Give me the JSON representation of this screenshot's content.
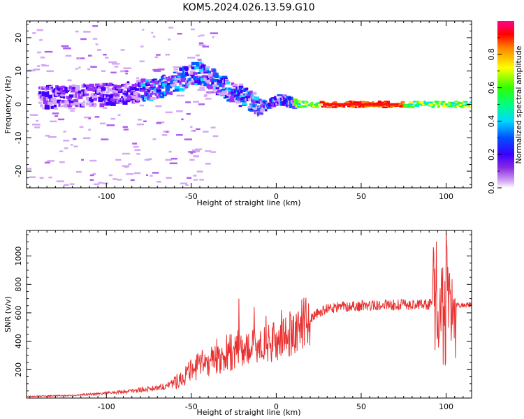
{
  "figure_title": "KOM5.2024.026.13.59.G10",
  "chart_data": [
    {
      "type": "heatmap",
      "xlabel": "Height of straight line (km)",
      "ylabel": "Frequency (Hz)",
      "xlim": [
        -147,
        115
      ],
      "ylim": [
        -25,
        25
      ],
      "xticks": [
        -100,
        -50,
        0,
        50,
        100
      ],
      "yticks": [
        -20,
        -10,
        0,
        10,
        20
      ],
      "colorbar": {
        "label": "Normalized spectral amplitude",
        "range": [
          0,
          1
        ],
        "ticks": [
          0.0,
          0.2,
          0.4,
          0.6,
          0.8
        ],
        "tick_labels": [
          "0.0",
          "0.2",
          "0.4",
          "0.6",
          "0.8"
        ]
      },
      "signal_trace": [
        [
          -140,
          2
        ],
        [
          -120,
          2.5
        ],
        [
          -100,
          3
        ],
        [
          -90,
          3.5
        ],
        [
          -80,
          4
        ],
        [
          -70,
          5
        ],
        [
          -60,
          6.5
        ],
        [
          -55,
          8
        ],
        [
          -50,
          9
        ],
        [
          -45,
          9.5
        ],
        [
          -40,
          8
        ],
        [
          -35,
          6
        ],
        [
          -30,
          4.5
        ],
        [
          -25,
          3.5
        ],
        [
          -20,
          2
        ],
        [
          -15,
          1
        ],
        [
          -10,
          -0.5
        ],
        [
          -5,
          0
        ],
        [
          0,
          1.5
        ],
        [
          5,
          1
        ],
        [
          10,
          0
        ],
        [
          20,
          0
        ],
        [
          30,
          0
        ],
        [
          60,
          0
        ],
        [
          100,
          0
        ],
        [
          115,
          0
        ]
      ]
    },
    {
      "type": "line",
      "xlabel": "Height of straight line (km)",
      "ylabel": "SNR (v/v)",
      "xlim": [
        -147,
        115
      ],
      "ylim": [
        0,
        1180
      ],
      "xticks": [
        -100,
        -50,
        0,
        50,
        100
      ],
      "yticks": [
        200,
        400,
        600,
        800,
        1000
      ],
      "color": "#e83030",
      "baseline": [
        [
          -147,
          12
        ],
        [
          -120,
          18
        ],
        [
          -100,
          35
        ],
        [
          -85,
          50
        ],
        [
          -75,
          65
        ],
        [
          -65,
          85
        ],
        [
          -60,
          110
        ],
        [
          -55,
          150
        ],
        [
          -50,
          190
        ],
        [
          -45,
          230
        ],
        [
          -40,
          260
        ],
        [
          -35,
          290
        ],
        [
          -30,
          310
        ],
        [
          -25,
          330
        ],
        [
          -20,
          340
        ],
        [
          -15,
          355
        ],
        [
          -10,
          375
        ],
        [
          -5,
          380
        ],
        [
          0,
          400
        ],
        [
          5,
          420
        ],
        [
          10,
          460
        ],
        [
          15,
          520
        ],
        [
          20,
          560
        ],
        [
          25,
          600
        ],
        [
          30,
          630
        ],
        [
          40,
          645
        ],
        [
          60,
          655
        ],
        [
          90,
          660
        ],
        [
          95,
          650
        ],
        [
          100,
          640
        ],
        [
          105,
          650
        ],
        [
          115,
          660
        ]
      ],
      "spikes": [
        [
          -22,
          700
        ],
        [
          -13,
          640
        ],
        [
          -6,
          580
        ],
        [
          3,
          620
        ],
        [
          8,
          610
        ],
        [
          98,
          920
        ],
        [
          100,
          1180
        ],
        [
          102,
          880
        ]
      ]
    }
  ]
}
